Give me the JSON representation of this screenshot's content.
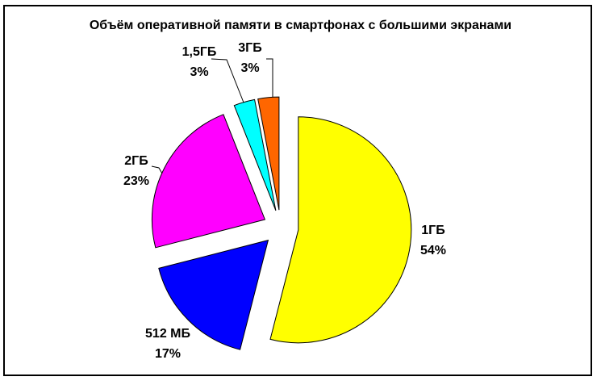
{
  "chart_data": {
    "type": "pie",
    "title": "Объём оперативной памяти в смартфонах с большими экранами",
    "categories": [
      "1ГБ",
      "512 МБ",
      "2ГБ",
      "1,5ГБ",
      "3ГБ"
    ],
    "values": [
      54,
      17,
      23,
      3,
      3
    ],
    "unit": "%",
    "colors": [
      "#FFFF00",
      "#0000FF",
      "#FF00FF",
      "#00FFFF",
      "#FF6600"
    ],
    "slice_border_color": "#000000",
    "background_color": "#FFFFFF",
    "start_angle_deg": 0,
    "direction": "clockwise",
    "exploded": true,
    "legend": "none",
    "labels": [
      {
        "name": "1ГБ",
        "percent": "54%"
      },
      {
        "name": "512 МБ",
        "percent": "17%"
      },
      {
        "name": "2ГБ",
        "percent": "23%"
      },
      {
        "name": "1,5ГБ",
        "percent": "3%"
      },
      {
        "name": "3ГБ",
        "percent": "3%"
      }
    ]
  }
}
